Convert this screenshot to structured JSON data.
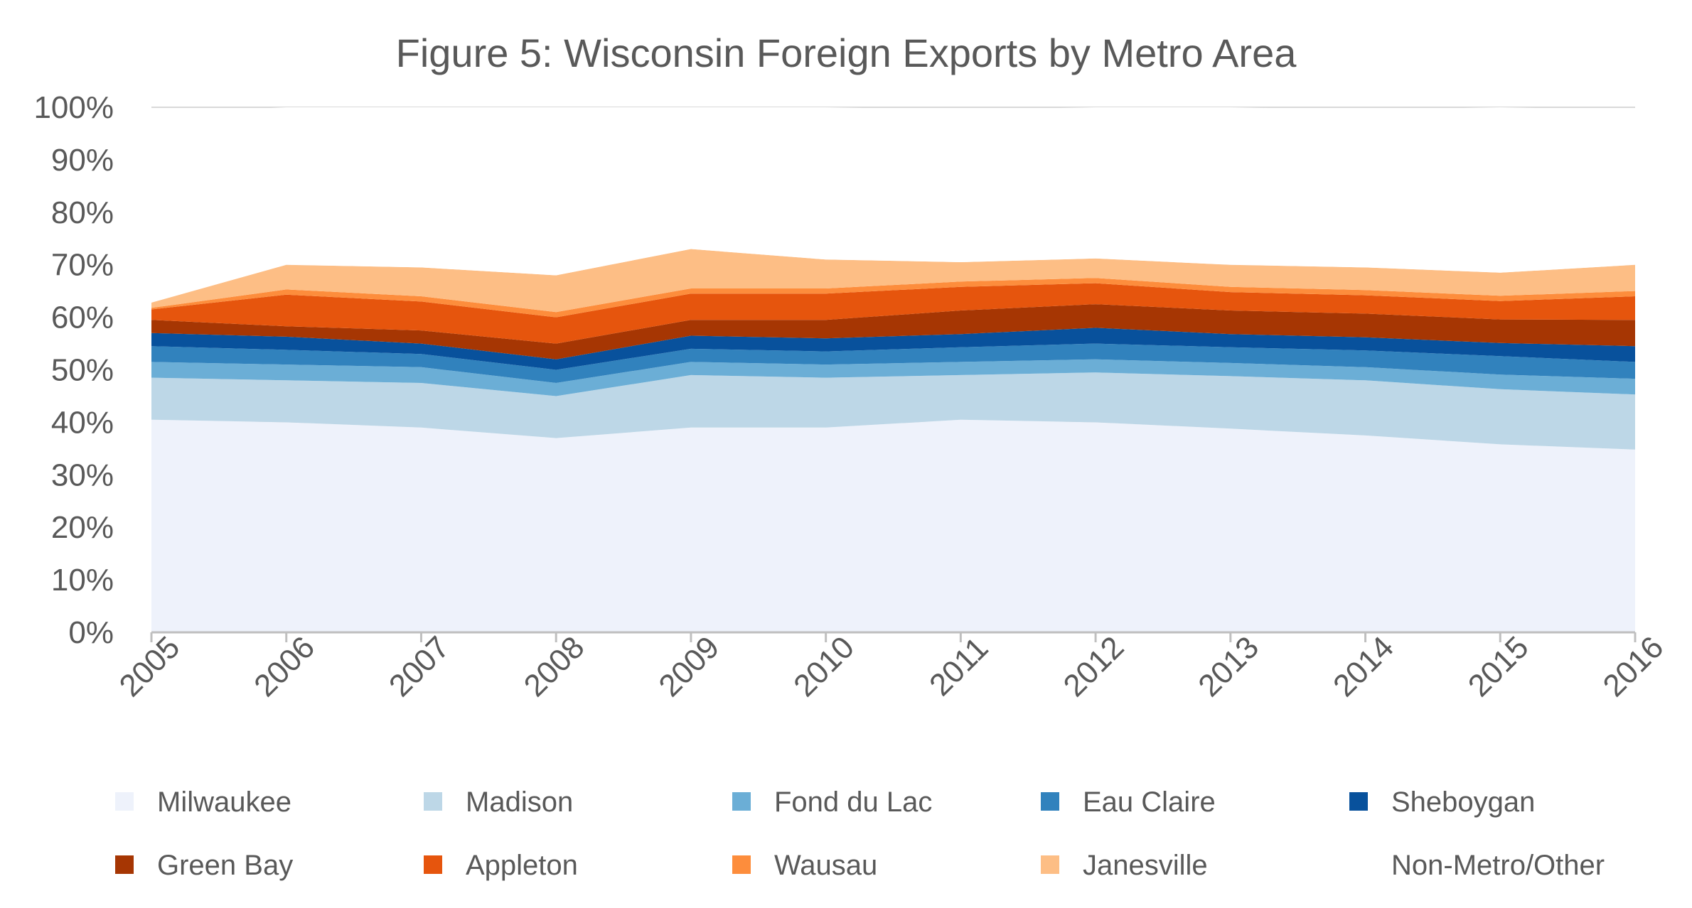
{
  "chart_data": {
    "type": "area",
    "stacked": true,
    "title": "Figure 5: Wisconsin Foreign Exports by Metro Area",
    "xlabel": "",
    "ylabel": "",
    "ylim": [
      0,
      100
    ],
    "yticks": [
      "0%",
      "10%",
      "20%",
      "30%",
      "40%",
      "50%",
      "60%",
      "70%",
      "80%",
      "90%",
      "100%"
    ],
    "grid": true,
    "legend_position": "bottom",
    "categories": [
      "2005",
      "2006",
      "2007",
      "2008",
      "2009",
      "2010",
      "2011",
      "2012",
      "2013",
      "2014",
      "2015",
      "2016"
    ],
    "series": [
      {
        "name": "Milwaukee",
        "color": "#eef2fb",
        "values": [
          40.5,
          40.0,
          39.0,
          37.0,
          39.0,
          39.0,
          40.5,
          40.0,
          38.8,
          37.5,
          35.8,
          34.8
        ]
      },
      {
        "name": "Madison",
        "color": "#bdd7e7",
        "values": [
          8.0,
          8.0,
          8.5,
          8.0,
          10.0,
          9.5,
          8.5,
          9.5,
          10.0,
          10.5,
          10.5,
          10.5
        ]
      },
      {
        "name": "Fond du Lac",
        "color": "#6baed6",
        "values": [
          3.0,
          3.0,
          3.0,
          2.5,
          2.5,
          2.5,
          2.5,
          2.5,
          2.5,
          2.5,
          2.8,
          3.0
        ]
      },
      {
        "name": "Eau Claire",
        "color": "#3182bd",
        "values": [
          3.0,
          2.8,
          2.5,
          2.5,
          2.5,
          2.5,
          2.8,
          3.0,
          3.0,
          3.2,
          3.5,
          3.2
        ]
      },
      {
        "name": "Sheboygan",
        "color": "#08519c",
        "values": [
          2.5,
          2.5,
          2.0,
          2.0,
          2.5,
          2.5,
          2.5,
          3.0,
          2.5,
          2.5,
          2.5,
          3.0
        ]
      },
      {
        "name": "Green Bay",
        "color": "#a63603",
        "values": [
          2.5,
          2.0,
          2.5,
          3.0,
          3.0,
          3.5,
          4.5,
          4.5,
          4.5,
          4.5,
          4.5,
          5.0
        ]
      },
      {
        "name": "Appleton",
        "color": "#e6550d",
        "values": [
          2.0,
          6.0,
          5.5,
          5.0,
          5.0,
          5.0,
          4.5,
          4.0,
          3.5,
          3.5,
          3.5,
          4.5
        ]
      },
      {
        "name": "Wausau",
        "color": "#fd8d3c",
        "values": [
          0.3,
          1.0,
          1.0,
          1.0,
          1.0,
          1.0,
          1.0,
          1.0,
          1.0,
          1.0,
          1.0,
          1.0
        ]
      },
      {
        "name": "Janesville",
        "color": "#fdbe85",
        "values": [
          1.0,
          4.7,
          5.5,
          7.0,
          7.5,
          5.5,
          3.7,
          3.7,
          4.2,
          4.3,
          4.4,
          5.0
        ]
      },
      {
        "name": "Non-Metro/Other",
        "color": "#ffffff",
        "values": [
          36.0,
          30.0,
          30.5,
          32.0,
          27.0,
          29.0,
          29.0,
          28.8,
          30.0,
          30.0,
          31.5,
          29.5
        ]
      }
    ],
    "colors": {
      "axis": "#bfbfbf",
      "grid": "#d9d9d9",
      "text": "#595959"
    }
  }
}
